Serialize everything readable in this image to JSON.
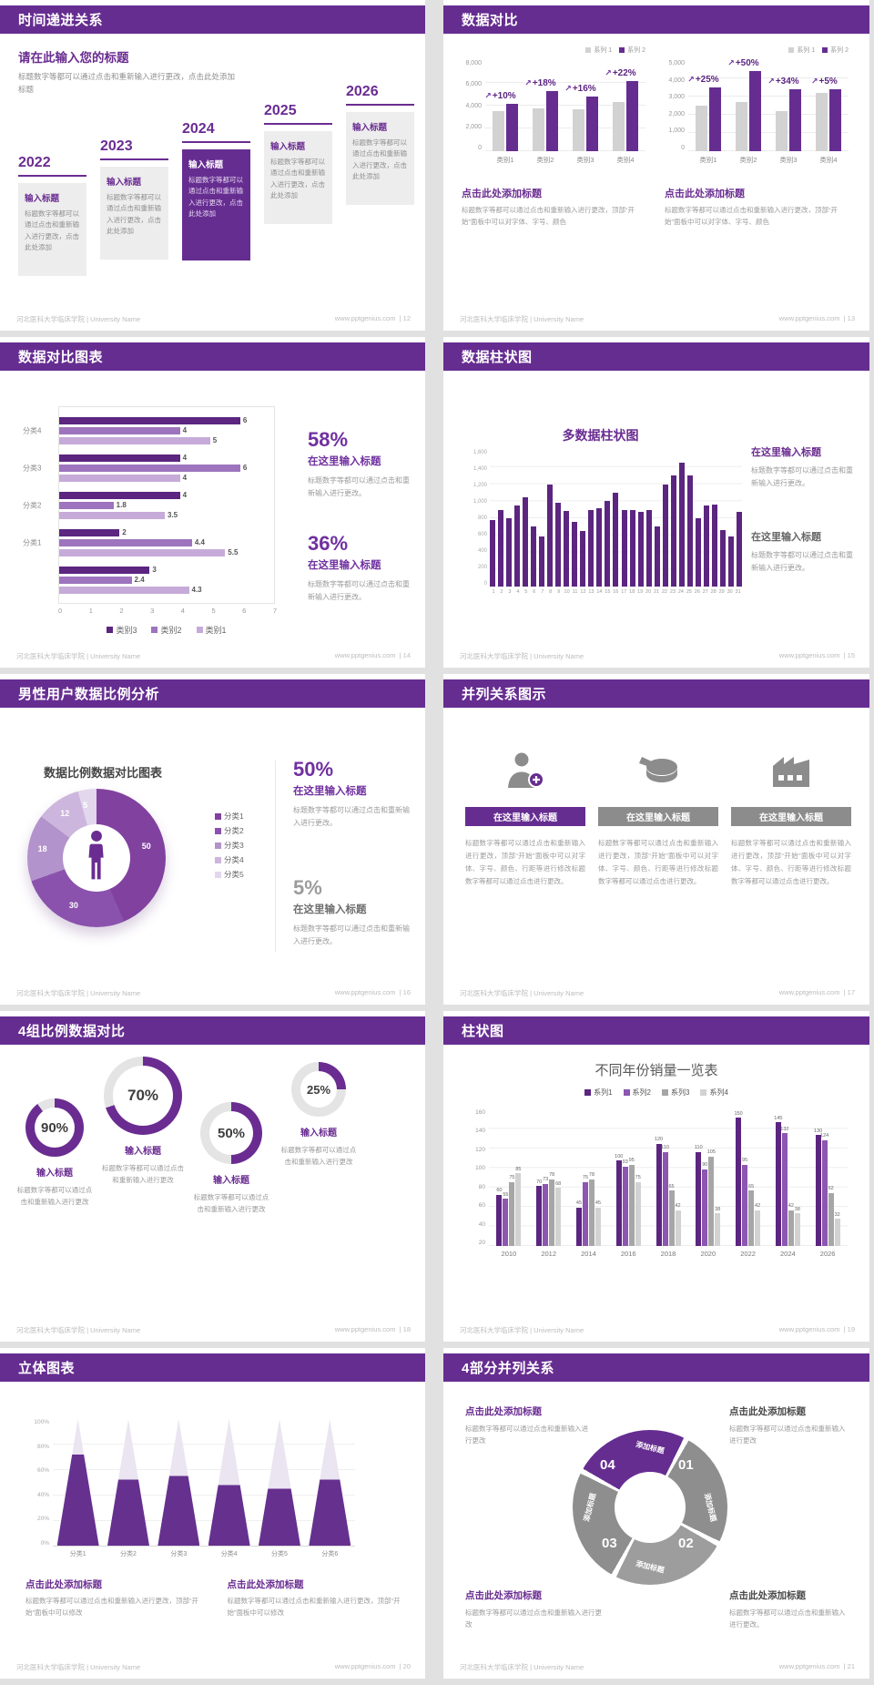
{
  "footer": {
    "org": "河北医科大学临床学院 | University Name",
    "site": "www.pptgenius.com",
    "pages": [
      "12",
      "13",
      "14",
      "15",
      "16",
      "17",
      "18",
      "19",
      "20",
      "21"
    ]
  },
  "theme": {
    "header_purple": "#662d91",
    "accent_purple": "#7030a0",
    "bar_dark": "#5b2580",
    "bar_medium": "#9d74bd",
    "bar_light": "#c6abd9",
    "bar_gray": "#d2d2d2"
  },
  "slides": {
    "timeline": {
      "title": "时间递进关系",
      "intro_title": "请在此输入您的标题",
      "intro_body": "标题数字等都可以通过点击和重新输入进行更改，点击此处添加标题",
      "years": [
        "2022",
        "2023",
        "2024",
        "2025",
        "2026"
      ],
      "card_title": "输入标题",
      "card_body": "标题数字等都可以通过点击和重新输入进行更改，点击此处添加"
    },
    "compare": {
      "title": "数据对比",
      "caption_title": "点击此处添加标题",
      "caption_body": "标题数字等都可以通过点击和重新输入进行更改，顶部“开始”面板中可以对字体、字号、颜色"
    },
    "hbar": {
      "title": "数据对比图表",
      "stats": [
        {
          "value": "58%",
          "label": "在这里输入标题",
          "body": "标题数字等都可以通过点击和重新输入进行更改。"
        },
        {
          "value": "36%",
          "label": "在这里输入标题",
          "body": "标题数字等都可以通过点击和重新输入进行更改。"
        }
      ]
    },
    "columns": {
      "title": "数据柱状图",
      "chart_title": "多数据柱状图",
      "blocks": [
        {
          "label": "在这里输入标题",
          "body": "标题数字等都可以通过点击和重新输入进行更改。"
        },
        {
          "label": "在这里输入标题",
          "body": "标题数字等都可以通过点击和重新输入进行更改。"
        }
      ]
    },
    "donut": {
      "title": "男性用户数据比例分析",
      "chart_title": "数据比例数据对比图表",
      "stats": [
        {
          "value": "50%",
          "label": "在这里输入标题",
          "body": "标题数字等都可以通过点击和重新输入进行更改。"
        },
        {
          "value": "5%",
          "label": "在这里输入标题",
          "body": "标题数字等都可以通过点击和重新输入进行更改。"
        }
      ]
    },
    "parallel": {
      "title": "并列关系图示",
      "item_title": "在这里输入标题",
      "item_body": "标题数字等都可以通过点击和重新输入进行更改，顶部“开始”面板中可以对字体、字号、颜色、行距等进行修改标题数字等都可以通过点击进行更改。",
      "icons": [
        "female-user-add-icon",
        "pie-3d-icon",
        "building-icon"
      ]
    },
    "rings": {
      "title": "4组比例数据对比",
      "values": [
        "90%",
        "70%",
        "50%",
        "25%"
      ],
      "item_title": "输入标题",
      "item_body": "标题数字等都可以通过点击和重新输入进行更改"
    },
    "grouped": {
      "title": "柱状图",
      "chart_title": "不同年份销量一览表"
    },
    "pyramid": {
      "title": "立体图表",
      "captions": [
        {
          "label": "点击此处添加标题",
          "body": "标题数字等都可以通过点击和重新输入进行更改，顶部“开始”面板中可以修改"
        },
        {
          "label": "点击此处添加标题",
          "body": "标题数字等都可以通过点击和重新输入进行更改，顶部“开始”面板中可以修改"
        }
      ]
    },
    "ring4": {
      "title": "4部分并列关系",
      "segment_label": "添加标题",
      "numbers": [
        "01",
        "02",
        "03",
        "04"
      ],
      "blocks": [
        {
          "label": "点击此处添加标题",
          "body": "标题数字等都可以通过点击和重新输入进行更改"
        },
        {
          "label": "点击此处添加标题",
          "body": "标题数字等都可以通过点击和重新输入进行更改"
        },
        {
          "label": "点击此处添加标题",
          "body": "标题数字等都可以通过点击和重新输入进行更改"
        },
        {
          "label": "点击此处添加标题",
          "body": "标题数字等都可以通过点击和重新输入进行更改。"
        }
      ]
    }
  },
  "chart_data": [
    {
      "id": "compare-left",
      "type": "bar",
      "categories": [
        "类别1",
        "类别2",
        "类别3",
        "类别4"
      ],
      "series": [
        {
          "name": "系列 1",
          "color": "#d2d2d2",
          "values": [
            3500,
            3800,
            3700,
            4300
          ]
        },
        {
          "name": "系列 2",
          "color": "#662d91",
          "values": [
            4200,
            5300,
            4800,
            6200
          ]
        }
      ],
      "annotations": [
        "+10%",
        "+18%",
        "+16%",
        "+22%"
      ],
      "ylim": [
        0,
        8000
      ],
      "ytick_labels": [
        "0",
        "2,000",
        "4,000",
        "6,000",
        "8,000"
      ],
      "legend_position": "top-right",
      "grid": true
    },
    {
      "id": "compare-right",
      "type": "bar",
      "categories": [
        "类别1",
        "类别2",
        "类别3",
        "类别4"
      ],
      "series": [
        {
          "name": "系列 1",
          "color": "#d2d2d2",
          "values": [
            2500,
            2700,
            2200,
            3200
          ]
        },
        {
          "name": "系列 2",
          "color": "#662d91",
          "values": [
            3500,
            4400,
            3400,
            3400
          ]
        }
      ],
      "annotations": [
        "+25%",
        "+50%",
        "+34%",
        "+5%"
      ],
      "ylim": [
        0,
        5000
      ],
      "ytick_labels": [
        "0",
        "1,000",
        "2,000",
        "3,000",
        "4,000",
        "5,000"
      ],
      "legend_position": "top-right",
      "grid": true
    },
    {
      "id": "hbar",
      "type": "bar",
      "orientation": "horizontal",
      "groups": [
        "分类4",
        "分类3",
        "分类2",
        "分类1",
        ""
      ],
      "series": [
        {
          "name": "类别3",
          "color": "#5b2580",
          "values": [
            6,
            4,
            4,
            2,
            3
          ]
        },
        {
          "name": "类别2",
          "color": "#9d74bd",
          "values": [
            4,
            6,
            1.8,
            4.4,
            2.4
          ]
        },
        {
          "name": "类别1",
          "color": "#c6abd9",
          "values": [
            5,
            4,
            3.5,
            5.5,
            4.3
          ]
        }
      ],
      "xlim": [
        0,
        7
      ],
      "xticks": [
        0,
        1,
        2,
        3,
        4,
        5,
        6,
        7
      ],
      "legend_position": "bottom"
    },
    {
      "id": "columns31",
      "type": "bar",
      "title": "多数据柱状图",
      "color": "#5b2580",
      "x": [
        1,
        2,
        3,
        4,
        5,
        6,
        7,
        8,
        9,
        10,
        11,
        12,
        13,
        14,
        15,
        16,
        17,
        18,
        19,
        20,
        21,
        22,
        23,
        24,
        25,
        26,
        27,
        28,
        29,
        30,
        31
      ],
      "values": [
        780,
        900,
        800,
        950,
        1050,
        700,
        590,
        1200,
        980,
        890,
        760,
        650,
        900,
        920,
        1000,
        1100,
        900,
        900,
        880,
        900,
        700,
        1200,
        1300,
        1450,
        1300,
        800,
        950,
        960,
        660,
        590,
        870
      ],
      "ylim": [
        0,
        1600
      ],
      "ytick_labels": [
        "0",
        "200",
        "400",
        "600",
        "800",
        "1,000",
        "1,200",
        "1,400",
        "1,600"
      ],
      "grid": true
    },
    {
      "id": "donut-main",
      "type": "pie",
      "title": "数据比例数据对比图表",
      "labels": [
        "分类1",
        "分类2",
        "分类3",
        "分类4",
        "分类5"
      ],
      "values": [
        50,
        30,
        18,
        12,
        5
      ],
      "colors": [
        "#81419f",
        "#8a52ad",
        "#b393cb",
        "#cdb6dd",
        "#e2d7ec"
      ],
      "center_icon": "male-person-icon",
      "legend_position": "right"
    },
    {
      "id": "progress-rings",
      "type": "pie",
      "style": "progress-ring",
      "values": [
        90,
        70,
        50,
        25
      ],
      "unit": "%",
      "color": "#6a2c91",
      "track": "#e4e4e4"
    },
    {
      "id": "grouped-columns",
      "type": "bar",
      "title": "不同年份销量一览表",
      "categories": [
        "2010",
        "2012",
        "2014",
        "2016",
        "2018",
        "2020",
        "2022",
        "2024",
        "2026"
      ],
      "series": [
        {
          "name": "系列1",
          "color": "#5b2580",
          "values": [
            60,
            70,
            45,
            100,
            120,
            110,
            150,
            145,
            130
          ]
        },
        {
          "name": "系列2",
          "color": "#8d56b0",
          "values": [
            55,
            73,
            75,
            93,
            110,
            90,
            95,
            132,
            124
          ]
        },
        {
          "name": "系列3",
          "color": "#a6a6a6",
          "values": [
            75,
            78,
            78,
            95,
            65,
            105,
            65,
            42,
            62
          ]
        },
        {
          "name": "系列4",
          "color": "#d2d2d2",
          "values": [
            85,
            68,
            45,
            75,
            42,
            38,
            42,
            38,
            32
          ]
        }
      ],
      "ylim": [
        0,
        160
      ],
      "ytick_labels": [
        "20",
        "40",
        "60",
        "80",
        "100",
        "120",
        "140",
        "160"
      ],
      "legend_position": "top",
      "grid": true
    },
    {
      "id": "pyramid-cones",
      "type": "bar",
      "style": "3d-pyramid",
      "categories": [
        "分类1",
        "分类2",
        "分类3",
        "分类4",
        "分类5",
        "分类6"
      ],
      "values": [
        72,
        52,
        55,
        48,
        45,
        52
      ],
      "unit": "%",
      "ylim": [
        0,
        100
      ],
      "ytick_labels": [
        "0%",
        "20%",
        "40%",
        "60%",
        "80%",
        "100%"
      ],
      "grid": true
    },
    {
      "id": "ring-4part",
      "type": "pie",
      "style": "segmented-ring",
      "labels": [
        "01",
        "02",
        "03",
        "04"
      ],
      "values": [
        25,
        25,
        25,
        25
      ],
      "colors": [
        "#8e8e8e",
        "#9d9d9d",
        "#8e8e8e",
        "#662d91"
      ]
    }
  ]
}
